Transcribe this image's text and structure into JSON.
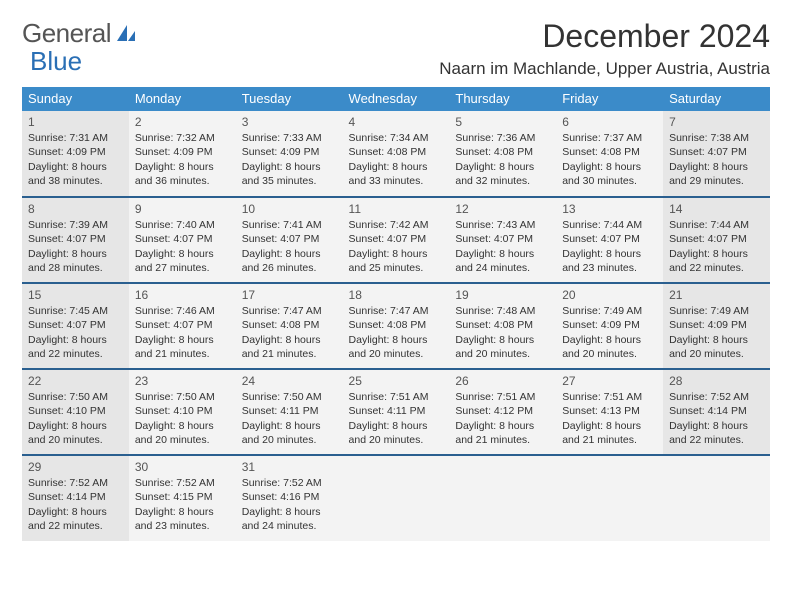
{
  "logo": {
    "word1": "General",
    "word2": "Blue"
  },
  "title": "December 2024",
  "location": "Naarn im Machlande, Upper Austria, Austria",
  "colors": {
    "header_bg": "#3b8bc9",
    "header_text": "#ffffff",
    "separator": "#2a5f8f",
    "cell_light": "#f3f3f3",
    "cell_dark": "#e6e6e6",
    "logo_gray": "#555555",
    "logo_blue": "#2a6fb5"
  },
  "daynames": [
    "Sunday",
    "Monday",
    "Tuesday",
    "Wednesday",
    "Thursday",
    "Friday",
    "Saturday"
  ],
  "weeks": [
    [
      {
        "n": "1",
        "sr": "Sunrise: 7:31 AM",
        "ss": "Sunset: 4:09 PM",
        "d1": "Daylight: 8 hours",
        "d2": "and 38 minutes.",
        "sh": "dark"
      },
      {
        "n": "2",
        "sr": "Sunrise: 7:32 AM",
        "ss": "Sunset: 4:09 PM",
        "d1": "Daylight: 8 hours",
        "d2": "and 36 minutes.",
        "sh": "light"
      },
      {
        "n": "3",
        "sr": "Sunrise: 7:33 AM",
        "ss": "Sunset: 4:09 PM",
        "d1": "Daylight: 8 hours",
        "d2": "and 35 minutes.",
        "sh": "light"
      },
      {
        "n": "4",
        "sr": "Sunrise: 7:34 AM",
        "ss": "Sunset: 4:08 PM",
        "d1": "Daylight: 8 hours",
        "d2": "and 33 minutes.",
        "sh": "light"
      },
      {
        "n": "5",
        "sr": "Sunrise: 7:36 AM",
        "ss": "Sunset: 4:08 PM",
        "d1": "Daylight: 8 hours",
        "d2": "and 32 minutes.",
        "sh": "light"
      },
      {
        "n": "6",
        "sr": "Sunrise: 7:37 AM",
        "ss": "Sunset: 4:08 PM",
        "d1": "Daylight: 8 hours",
        "d2": "and 30 minutes.",
        "sh": "light"
      },
      {
        "n": "7",
        "sr": "Sunrise: 7:38 AM",
        "ss": "Sunset: 4:07 PM",
        "d1": "Daylight: 8 hours",
        "d2": "and 29 minutes.",
        "sh": "dark"
      }
    ],
    [
      {
        "n": "8",
        "sr": "Sunrise: 7:39 AM",
        "ss": "Sunset: 4:07 PM",
        "d1": "Daylight: 8 hours",
        "d2": "and 28 minutes.",
        "sh": "dark"
      },
      {
        "n": "9",
        "sr": "Sunrise: 7:40 AM",
        "ss": "Sunset: 4:07 PM",
        "d1": "Daylight: 8 hours",
        "d2": "and 27 minutes.",
        "sh": "light"
      },
      {
        "n": "10",
        "sr": "Sunrise: 7:41 AM",
        "ss": "Sunset: 4:07 PM",
        "d1": "Daylight: 8 hours",
        "d2": "and 26 minutes.",
        "sh": "light"
      },
      {
        "n": "11",
        "sr": "Sunrise: 7:42 AM",
        "ss": "Sunset: 4:07 PM",
        "d1": "Daylight: 8 hours",
        "d2": "and 25 minutes.",
        "sh": "light"
      },
      {
        "n": "12",
        "sr": "Sunrise: 7:43 AM",
        "ss": "Sunset: 4:07 PM",
        "d1": "Daylight: 8 hours",
        "d2": "and 24 minutes.",
        "sh": "light"
      },
      {
        "n": "13",
        "sr": "Sunrise: 7:44 AM",
        "ss": "Sunset: 4:07 PM",
        "d1": "Daylight: 8 hours",
        "d2": "and 23 minutes.",
        "sh": "light"
      },
      {
        "n": "14",
        "sr": "Sunrise: 7:44 AM",
        "ss": "Sunset: 4:07 PM",
        "d1": "Daylight: 8 hours",
        "d2": "and 22 minutes.",
        "sh": "dark"
      }
    ],
    [
      {
        "n": "15",
        "sr": "Sunrise: 7:45 AM",
        "ss": "Sunset: 4:07 PM",
        "d1": "Daylight: 8 hours",
        "d2": "and 22 minutes.",
        "sh": "dark"
      },
      {
        "n": "16",
        "sr": "Sunrise: 7:46 AM",
        "ss": "Sunset: 4:07 PM",
        "d1": "Daylight: 8 hours",
        "d2": "and 21 minutes.",
        "sh": "light"
      },
      {
        "n": "17",
        "sr": "Sunrise: 7:47 AM",
        "ss": "Sunset: 4:08 PM",
        "d1": "Daylight: 8 hours",
        "d2": "and 21 minutes.",
        "sh": "light"
      },
      {
        "n": "18",
        "sr": "Sunrise: 7:47 AM",
        "ss": "Sunset: 4:08 PM",
        "d1": "Daylight: 8 hours",
        "d2": "and 20 minutes.",
        "sh": "light"
      },
      {
        "n": "19",
        "sr": "Sunrise: 7:48 AM",
        "ss": "Sunset: 4:08 PM",
        "d1": "Daylight: 8 hours",
        "d2": "and 20 minutes.",
        "sh": "light"
      },
      {
        "n": "20",
        "sr": "Sunrise: 7:49 AM",
        "ss": "Sunset: 4:09 PM",
        "d1": "Daylight: 8 hours",
        "d2": "and 20 minutes.",
        "sh": "light"
      },
      {
        "n": "21",
        "sr": "Sunrise: 7:49 AM",
        "ss": "Sunset: 4:09 PM",
        "d1": "Daylight: 8 hours",
        "d2": "and 20 minutes.",
        "sh": "dark"
      }
    ],
    [
      {
        "n": "22",
        "sr": "Sunrise: 7:50 AM",
        "ss": "Sunset: 4:10 PM",
        "d1": "Daylight: 8 hours",
        "d2": "and 20 minutes.",
        "sh": "dark"
      },
      {
        "n": "23",
        "sr": "Sunrise: 7:50 AM",
        "ss": "Sunset: 4:10 PM",
        "d1": "Daylight: 8 hours",
        "d2": "and 20 minutes.",
        "sh": "light"
      },
      {
        "n": "24",
        "sr": "Sunrise: 7:50 AM",
        "ss": "Sunset: 4:11 PM",
        "d1": "Daylight: 8 hours",
        "d2": "and 20 minutes.",
        "sh": "light"
      },
      {
        "n": "25",
        "sr": "Sunrise: 7:51 AM",
        "ss": "Sunset: 4:11 PM",
        "d1": "Daylight: 8 hours",
        "d2": "and 20 minutes.",
        "sh": "light"
      },
      {
        "n": "26",
        "sr": "Sunrise: 7:51 AM",
        "ss": "Sunset: 4:12 PM",
        "d1": "Daylight: 8 hours",
        "d2": "and 21 minutes.",
        "sh": "light"
      },
      {
        "n": "27",
        "sr": "Sunrise: 7:51 AM",
        "ss": "Sunset: 4:13 PM",
        "d1": "Daylight: 8 hours",
        "d2": "and 21 minutes.",
        "sh": "light"
      },
      {
        "n": "28",
        "sr": "Sunrise: 7:52 AM",
        "ss": "Sunset: 4:14 PM",
        "d1": "Daylight: 8 hours",
        "d2": "and 22 minutes.",
        "sh": "dark"
      }
    ],
    [
      {
        "n": "29",
        "sr": "Sunrise: 7:52 AM",
        "ss": "Sunset: 4:14 PM",
        "d1": "Daylight: 8 hours",
        "d2": "and 22 minutes.",
        "sh": "dark"
      },
      {
        "n": "30",
        "sr": "Sunrise: 7:52 AM",
        "ss": "Sunset: 4:15 PM",
        "d1": "Daylight: 8 hours",
        "d2": "and 23 minutes.",
        "sh": "light"
      },
      {
        "n": "31",
        "sr": "Sunrise: 7:52 AM",
        "ss": "Sunset: 4:16 PM",
        "d1": "Daylight: 8 hours",
        "d2": "and 24 minutes.",
        "sh": "light"
      },
      null,
      null,
      null,
      null
    ]
  ]
}
